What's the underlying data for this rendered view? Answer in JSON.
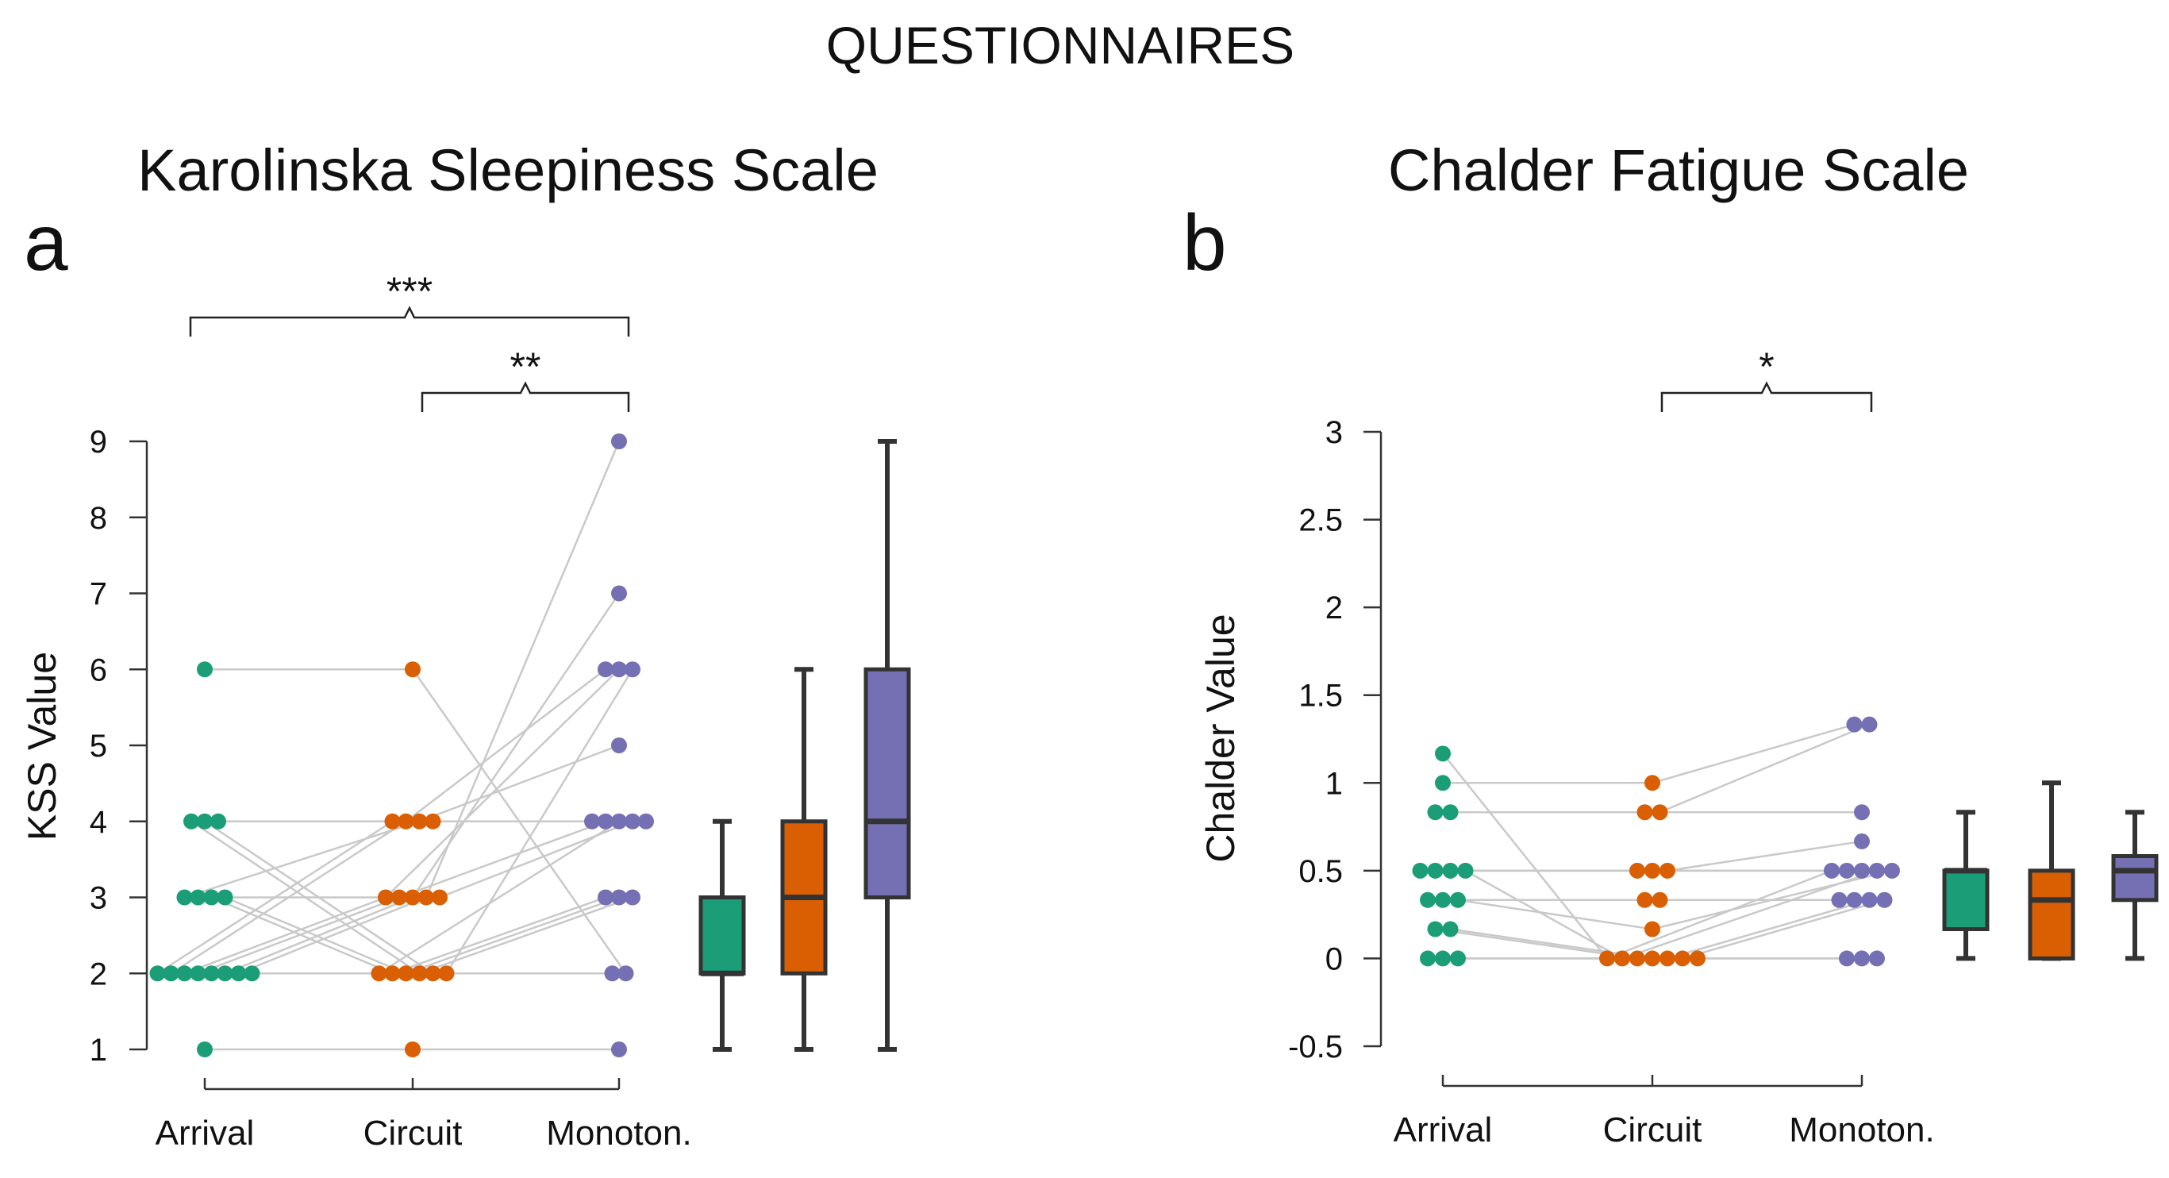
{
  "figure_title": "QUESTIONNAIRES",
  "colors": {
    "arrival": "#1b9e77",
    "circuit": "#d95f02",
    "monotony": "#7570b3",
    "connector": "#c9c9c9"
  },
  "chart_data": [
    {
      "panel": "a",
      "type": "scatter",
      "title": "Karolinska Sleepiness Scale",
      "ylabel": "KSS Value",
      "xlabel": "",
      "categories": [
        "Arrival",
        "Circuit",
        "Monoton."
      ],
      "ylim": [
        1,
        9
      ],
      "yticks": [
        1,
        2,
        3,
        4,
        5,
        6,
        7,
        8,
        9
      ],
      "ytick_labels": [
        "1",
        "2",
        "3",
        "4",
        "5",
        "6",
        "7",
        "8",
        "9"
      ],
      "subjects": [
        [
          2,
          4,
          4
        ],
        [
          2,
          4,
          6
        ],
        [
          2,
          3,
          6
        ],
        [
          2,
          3,
          4
        ],
        [
          2,
          2,
          4
        ],
        [
          2,
          3,
          7
        ],
        [
          2,
          3,
          9
        ],
        [
          3,
          4,
          5
        ],
        [
          3,
          3,
          4
        ],
        [
          3,
          2,
          3
        ],
        [
          3,
          2,
          3
        ],
        [
          4,
          2,
          3
        ],
        [
          4,
          2,
          2
        ],
        [
          6,
          6,
          2
        ],
        [
          1,
          1,
          1
        ],
        [
          4,
          4,
          4
        ],
        [
          2,
          2,
          6
        ]
      ],
      "boxes": [
        {
          "name": "Arrival",
          "min": 1,
          "q1": 2,
          "median": 2,
          "q3": 3,
          "max": 4
        },
        {
          "name": "Circuit",
          "min": 1,
          "q1": 2,
          "median": 3,
          "q3": 4,
          "max": 6
        },
        {
          "name": "Monoton.",
          "min": 1,
          "q1": 3,
          "median": 4,
          "q3": 6,
          "max": 9
        }
      ],
      "significance": [
        {
          "from": "Arrival",
          "to": "Monoton.",
          "label": "***"
        },
        {
          "from": "Circuit",
          "to": "Monoton.",
          "label": "**"
        }
      ]
    },
    {
      "panel": "b",
      "type": "scatter",
      "title": "Chalder Fatigue Scale",
      "ylabel": "Chalder Value",
      "xlabel": "",
      "categories": [
        "Arrival",
        "Circuit",
        "Monoton."
      ],
      "ylim": [
        -0.5,
        3
      ],
      "yticks": [
        -0.5,
        0,
        0.5,
        1,
        1.5,
        2,
        2.5,
        3
      ],
      "ytick_labels": [
        "-0.5",
        "0",
        "0.5",
        "1",
        "1.5",
        "2",
        "2.5",
        "3"
      ],
      "subjects": [
        [
          1.167,
          0,
          0.5
        ],
        [
          1,
          1,
          1.333
        ],
        [
          0.833,
          0.833,
          0.833
        ],
        [
          0.833,
          0.833,
          1.333
        ],
        [
          0.5,
          0.5,
          0.5
        ],
        [
          0.5,
          0.5,
          0.5
        ],
        [
          0.5,
          0.5,
          0.667
        ],
        [
          0.5,
          0,
          0.5
        ],
        [
          0.333,
          0.333,
          0.333
        ],
        [
          0.333,
          0.333,
          0.333
        ],
        [
          0.333,
          0.167,
          0.5
        ],
        [
          0.167,
          0,
          0
        ],
        [
          0.167,
          0,
          0
        ],
        [
          0,
          0,
          0.333
        ],
        [
          0,
          0,
          0.333
        ],
        [
          0,
          0,
          0
        ]
      ],
      "boxes": [
        {
          "name": "Arrival",
          "min": 0,
          "q1": 0.167,
          "median": 0.5,
          "q3": 0.5,
          "max": 0.833
        },
        {
          "name": "Circuit",
          "min": 0,
          "q1": 0,
          "median": 0.333,
          "q3": 0.5,
          "max": 1
        },
        {
          "name": "Monoton.",
          "min": 0,
          "q1": 0.333,
          "median": 0.5,
          "q3": 0.583,
          "max": 0.833
        }
      ],
      "significance": [
        {
          "from": "Circuit",
          "to": "Monoton.",
          "label": "*"
        }
      ]
    }
  ]
}
